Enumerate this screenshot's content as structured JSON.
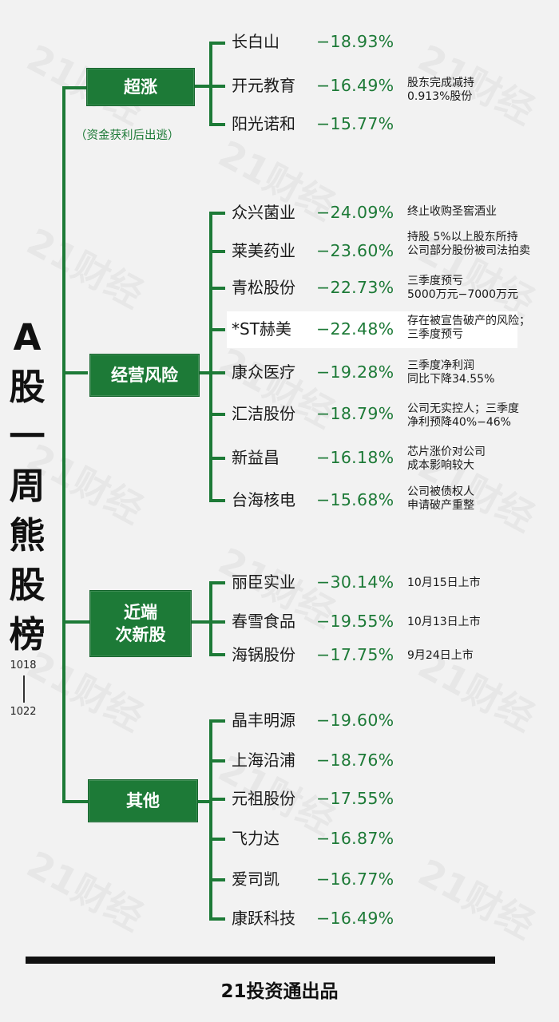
{
  "title_chars": [
    "A",
    "股",
    "一",
    "周",
    "熊",
    "股",
    "榜"
  ],
  "date_start": "1018",
  "date_end": "1022",
  "footer": "21投资通出品",
  "watermark": "21财经",
  "groups": [
    {
      "label": [
        "超涨"
      ],
      "note": "（资金获利后出逃）",
      "items": [
        {
          "name": "长白山",
          "change": "−18.93%",
          "comment": []
        },
        {
          "name": "开元教育",
          "change": "−16.49%",
          "comment": [
            "股东完成减持",
            "0.913%股份"
          ]
        },
        {
          "name": "阳光诺和",
          "change": "−15.77%",
          "comment": []
        }
      ]
    },
    {
      "label": [
        "经营风险"
      ],
      "note": "",
      "items": [
        {
          "name": "众兴菌业",
          "change": "−24.09%",
          "comment": [
            "终止收购圣窖酒业"
          ]
        },
        {
          "name": "莱美药业",
          "change": "−23.60%",
          "comment": [
            "持股 5%以上股东所持",
            "公司部分股份被司法拍卖"
          ]
        },
        {
          "name": "青松股份",
          "change": "−22.73%",
          "comment": [
            "三季度预亏",
            "5000万元−7000万元"
          ]
        },
        {
          "name": "*ST赫美",
          "change": "−22.48%",
          "comment": [
            "存在被宣告破产的风险；",
            "三季度预亏"
          ]
        },
        {
          "name": "康众医疗",
          "change": "−19.28%",
          "comment": [
            "三季度净利润",
            "同比下降34.55%"
          ]
        },
        {
          "name": "汇洁股份",
          "change": "−18.79%",
          "comment": [
            "公司无实控人；三季度",
            "净利预降40%−46%"
          ]
        },
        {
          "name": "新益昌",
          "change": "−16.18%",
          "comment": [
            "芯片涨价对公司",
            "成本影响较大"
          ]
        },
        {
          "name": "台海核电",
          "change": "−15.68%",
          "comment": [
            "公司被债权人",
            "申请破产重整"
          ]
        }
      ]
    },
    {
      "label": [
        "近端",
        "次新股"
      ],
      "note": "",
      "items": [
        {
          "name": "丽臣实业",
          "change": "−30.14%",
          "comment": [
            "10月15日上市"
          ]
        },
        {
          "name": "春雪食品",
          "change": "−19.55%",
          "comment": [
            "10月13日上市"
          ]
        },
        {
          "name": "海锅股份",
          "change": "−17.75%",
          "comment": [
            "9月24日上市"
          ]
        }
      ]
    },
    {
      "label": [
        "其他"
      ],
      "note": "",
      "items": [
        {
          "name": "晶丰明源",
          "change": "−19.60%",
          "comment": []
        },
        {
          "name": "上海沿浦",
          "change": "−18.76%",
          "comment": []
        },
        {
          "name": "元祖股份",
          "change": "−17.55%",
          "comment": []
        },
        {
          "name": "飞力达",
          "change": "−16.87%",
          "comment": []
        },
        {
          "name": "爱司凯",
          "change": "−16.77%",
          "comment": []
        },
        {
          "name": "康跃科技",
          "change": "−16.49%",
          "comment": []
        }
      ]
    }
  ]
}
